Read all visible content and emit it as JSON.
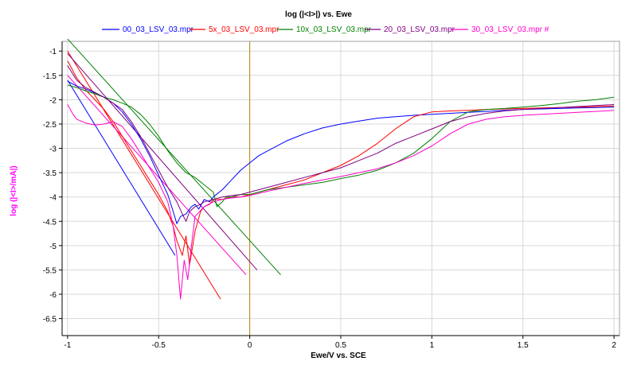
{
  "chart_data": {
    "type": "line",
    "title": "log (|<I>|) vs. Ewe",
    "xlabel": "Ewe/V vs. SCE",
    "ylabel": "log (|<I>/mA|)",
    "xlim": [
      -1.03,
      2.03
    ],
    "ylim": [
      -6.85,
      -0.8
    ],
    "x_ticks": [
      -1,
      -0.5,
      0,
      0.5,
      1,
      1.5,
      2
    ],
    "x_tick_labels": [
      "-1",
      "-0.5",
      "0",
      "0.5",
      "1",
      "1.5",
      "2"
    ],
    "y_ticks": [
      -1,
      -1.5,
      -2,
      -2.5,
      -3,
      -3.5,
      -4,
      -4.5,
      -5,
      -5.5,
      -6,
      -6.5
    ],
    "y_tick_labels": [
      "-1",
      "-1.5",
      "-2",
      "-2.5",
      "-3",
      "-3.5",
      "-4",
      "-4.5",
      "-5",
      "-5.5",
      "-6",
      "-6.5"
    ],
    "grid": true,
    "legend_position": "top",
    "vertical_marker": {
      "x": 0,
      "color": "#b8860b"
    },
    "colors": {
      "axis": "#000000",
      "grid": "#d8d8d8",
      "ylabel": "#ff00ff"
    },
    "series": [
      {
        "name": "00_03_LSV_03.mpr",
        "color": "#0000ff",
        "x": [
          -1.0,
          -0.95,
          -0.9,
          -0.85,
          -0.8,
          -0.75,
          -0.7,
          -0.65,
          -0.6,
          -0.55,
          -0.5,
          -0.45,
          -0.42,
          -0.4,
          -0.38,
          -0.35,
          -0.32,
          -0.3,
          -0.28,
          -0.25,
          -0.22,
          -0.2,
          -0.15,
          -0.1,
          -0.05,
          0.0,
          0.05,
          0.1,
          0.2,
          0.3,
          0.4,
          0.5,
          0.6,
          0.7,
          0.8,
          0.9,
          1.0,
          1.1,
          1.2,
          1.3,
          1.4,
          1.5,
          1.6,
          1.7,
          1.8,
          1.9,
          2.0
        ],
        "y": [
          -1.62,
          -1.72,
          -1.78,
          -1.86,
          -1.95,
          -2.07,
          -2.25,
          -2.5,
          -2.8,
          -3.15,
          -3.55,
          -3.95,
          -4.3,
          -4.55,
          -4.4,
          -4.35,
          -4.2,
          -4.15,
          -4.25,
          -4.05,
          -4.1,
          -4.0,
          -3.85,
          -3.65,
          -3.45,
          -3.3,
          -3.15,
          -3.05,
          -2.85,
          -2.7,
          -2.58,
          -2.5,
          -2.44,
          -2.38,
          -2.35,
          -2.32,
          -2.3,
          -2.28,
          -2.26,
          -2.24,
          -2.22,
          -2.2,
          -2.19,
          -2.18,
          -2.17,
          -2.16,
          -2.15
        ]
      },
      {
        "name": "5x_03_LSV_03.mpr",
        "color": "#ff0000",
        "x": [
          -1.0,
          -0.95,
          -0.9,
          -0.85,
          -0.8,
          -0.75,
          -0.7,
          -0.65,
          -0.6,
          -0.55,
          -0.5,
          -0.45,
          -0.42,
          -0.4,
          -0.37,
          -0.35,
          -0.33,
          -0.3,
          -0.27,
          -0.25,
          -0.22,
          -0.2,
          -0.15,
          -0.1,
          -0.05,
          0.0,
          0.1,
          0.2,
          0.3,
          0.4,
          0.5,
          0.6,
          0.7,
          0.8,
          0.9,
          1.0,
          1.1,
          1.2,
          1.3,
          1.4,
          1.5,
          1.6,
          1.7,
          1.8,
          1.9,
          2.0
        ],
        "y": [
          -1.2,
          -1.55,
          -1.8,
          -2.0,
          -2.2,
          -2.45,
          -2.75,
          -3.05,
          -3.35,
          -3.65,
          -3.95,
          -4.3,
          -4.6,
          -4.9,
          -5.2,
          -4.8,
          -5.4,
          -4.7,
          -4.3,
          -4.2,
          -4.15,
          -4.05,
          -4.05,
          -4.0,
          -4.0,
          -3.95,
          -3.85,
          -3.75,
          -3.65,
          -3.5,
          -3.35,
          -3.15,
          -2.9,
          -2.6,
          -2.35,
          -2.25,
          -2.23,
          -2.22,
          -2.2,
          -2.19,
          -2.18,
          -2.17,
          -2.16,
          -2.15,
          -2.14,
          -2.13
        ]
      },
      {
        "name": "10x_03_LSV_03.mpr",
        "color": "#008000",
        "x": [
          -1.0,
          -0.95,
          -0.9,
          -0.85,
          -0.8,
          -0.75,
          -0.7,
          -0.65,
          -0.6,
          -0.55,
          -0.5,
          -0.45,
          -0.4,
          -0.35,
          -0.3,
          -0.25,
          -0.2,
          -0.18,
          -0.15,
          -0.13,
          -0.1,
          -0.05,
          0.0,
          0.05,
          0.1,
          0.2,
          0.3,
          0.4,
          0.5,
          0.6,
          0.7,
          0.8,
          0.9,
          1.0,
          1.1,
          1.2,
          1.3,
          1.4,
          1.5,
          1.6,
          1.7,
          1.8,
          1.9,
          2.0
        ],
        "y": [
          -1.7,
          -1.75,
          -1.82,
          -1.88,
          -1.95,
          -2.0,
          -2.07,
          -2.15,
          -2.3,
          -2.5,
          -2.75,
          -3.05,
          -3.3,
          -3.5,
          -3.6,
          -3.75,
          -3.9,
          -4.2,
          -4.1,
          -4.0,
          -4.0,
          -3.95,
          -3.95,
          -3.9,
          -3.85,
          -3.8,
          -3.75,
          -3.7,
          -3.62,
          -3.55,
          -3.45,
          -3.3,
          -3.1,
          -2.8,
          -2.45,
          -2.25,
          -2.2,
          -2.18,
          -2.15,
          -2.12,
          -2.08,
          -2.03,
          -2.0,
          -1.95
        ]
      },
      {
        "name": "20_03_LSV_03.mpr",
        "color": "#800080",
        "x": [
          -1.0,
          -0.95,
          -0.9,
          -0.85,
          -0.8,
          -0.75,
          -0.7,
          -0.65,
          -0.6,
          -0.55,
          -0.5,
          -0.45,
          -0.4,
          -0.37,
          -0.35,
          -0.33,
          -0.3,
          -0.27,
          -0.25,
          -0.2,
          -0.15,
          -0.1,
          -0.05,
          0.0,
          0.1,
          0.2,
          0.3,
          0.4,
          0.5,
          0.6,
          0.7,
          0.8,
          0.9,
          1.0,
          1.1,
          1.2,
          1.3,
          1.4,
          1.5,
          1.6,
          1.7,
          1.8,
          1.9,
          2.0
        ],
        "y": [
          -1.3,
          -1.6,
          -1.75,
          -1.85,
          -1.95,
          -2.07,
          -2.2,
          -2.45,
          -2.75,
          -3.1,
          -3.45,
          -3.8,
          -4.1,
          -4.35,
          -4.5,
          -4.3,
          -4.2,
          -4.15,
          -4.1,
          -4.05,
          -4.0,
          -3.97,
          -3.95,
          -3.9,
          -3.8,
          -3.7,
          -3.6,
          -3.5,
          -3.4,
          -3.25,
          -3.1,
          -2.9,
          -2.75,
          -2.6,
          -2.45,
          -2.35,
          -2.28,
          -2.23,
          -2.2,
          -2.18,
          -2.16,
          -2.14,
          -2.12,
          -2.1
        ]
      },
      {
        "name": "30_03_LSV_03.mpr #",
        "color": "#ff00cc",
        "x": [
          -1.0,
          -0.97,
          -0.95,
          -0.9,
          -0.85,
          -0.8,
          -0.75,
          -0.7,
          -0.65,
          -0.6,
          -0.55,
          -0.5,
          -0.45,
          -0.42,
          -0.4,
          -0.38,
          -0.36,
          -0.34,
          -0.32,
          -0.3,
          -0.25,
          -0.2,
          -0.15,
          -0.1,
          -0.05,
          0.0,
          0.1,
          0.2,
          0.3,
          0.4,
          0.5,
          0.6,
          0.7,
          0.8,
          0.9,
          1.0,
          1.1,
          1.2,
          1.3,
          1.4,
          1.5,
          1.6,
          1.7,
          1.8,
          1.9,
          2.0
        ],
        "y": [
          -2.1,
          -2.3,
          -2.4,
          -2.48,
          -2.52,
          -2.5,
          -2.45,
          -2.55,
          -2.8,
          -3.1,
          -3.4,
          -3.7,
          -4.1,
          -4.6,
          -5.2,
          -6.1,
          -5.3,
          -5.7,
          -5.0,
          -4.4,
          -4.2,
          -4.1,
          -4.05,
          -4.02,
          -4.0,
          -3.97,
          -3.88,
          -3.8,
          -3.72,
          -3.65,
          -3.58,
          -3.5,
          -3.42,
          -3.3,
          -3.15,
          -2.95,
          -2.7,
          -2.5,
          -2.4,
          -2.35,
          -2.32,
          -2.3,
          -2.28,
          -2.26,
          -2.24,
          -2.22
        ]
      }
    ],
    "tafel_lines": [
      {
        "color": "#0000ff",
        "x1": -1.0,
        "y1": -1.6,
        "x2": -0.41,
        "y2": -5.2
      },
      {
        "color": "#ff0000",
        "x1": -1.0,
        "y1": -1.0,
        "x2": -0.16,
        "y2": -6.1
      },
      {
        "color": "#008000",
        "x1": -1.0,
        "y1": -0.75,
        "x2": 0.17,
        "y2": -5.6
      },
      {
        "color": "#800080",
        "x1": -1.0,
        "y1": -1.05,
        "x2": 0.04,
        "y2": -5.5
      },
      {
        "color": "#ff00cc",
        "x1": -1.0,
        "y1": -1.5,
        "x2": -0.02,
        "y2": -5.6
      }
    ]
  }
}
